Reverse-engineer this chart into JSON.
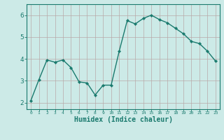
{
  "x": [
    0,
    1,
    2,
    3,
    4,
    5,
    6,
    7,
    8,
    9,
    10,
    11,
    12,
    13,
    14,
    15,
    16,
    17,
    18,
    19,
    20,
    21,
    22,
    23
  ],
  "y": [
    2.1,
    3.05,
    3.95,
    3.85,
    3.95,
    3.6,
    2.95,
    2.9,
    2.35,
    2.8,
    2.8,
    4.35,
    5.75,
    5.6,
    5.85,
    6.0,
    5.8,
    5.65,
    5.4,
    5.15,
    4.8,
    4.7,
    4.35,
    3.9
  ],
  "line_color": "#1a7a6e",
  "marker": "D",
  "marker_size": 2.2,
  "bg_color": "#cceae7",
  "grid_color": "#b8a8a8",
  "axis_color": "#1a7a6e",
  "tick_color": "#1a7a6e",
  "xlabel": "Humidex (Indice chaleur)",
  "xlabel_fontsize": 7,
  "xlabel_color": "#1a7a6e",
  "ylabel_ticks": [
    2,
    3,
    4,
    5,
    6
  ],
  "xlim": [
    -0.5,
    23.5
  ],
  "ylim": [
    1.7,
    6.5
  ]
}
